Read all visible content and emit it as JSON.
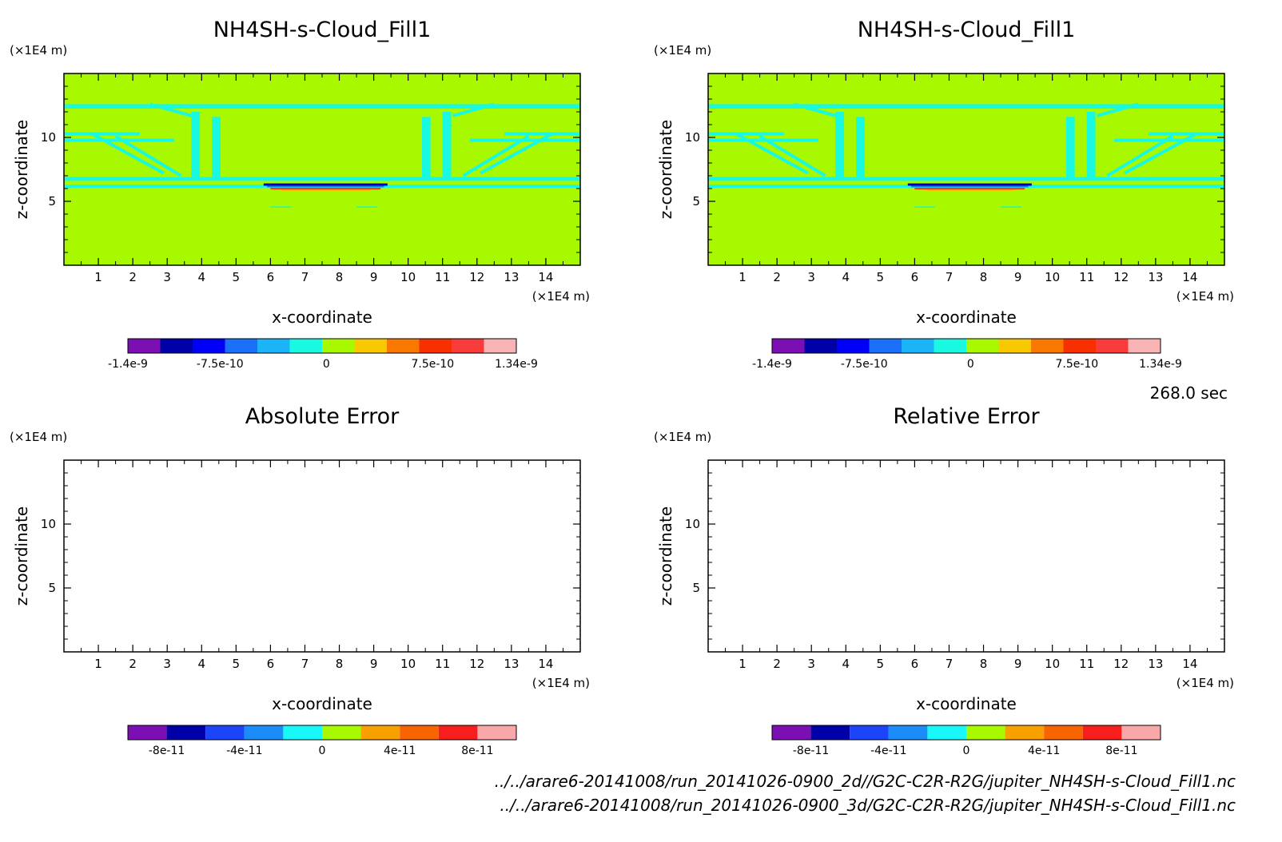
{
  "chart_data": [
    {
      "type": "heatmap",
      "title": "NH4SH-s-Cloud_Fill1",
      "xlabel": "x-coordinate",
      "ylabel": "z-coordinate",
      "x_unit": "(×1E4 m)",
      "y_unit": "(×1E4 m)",
      "xlim": [
        0,
        15
      ],
      "ylim": [
        0,
        15
      ],
      "x_ticks": [
        "1",
        "2",
        "3",
        "4",
        "5",
        "6",
        "7",
        "8",
        "9",
        "10",
        "11",
        "12",
        "13",
        "14"
      ],
      "y_ticks": [
        "5",
        "10"
      ],
      "colorbar": {
        "colors": [
          "#7b0fb4",
          "#0000a8",
          "#0000f8",
          "#1c6ff8",
          "#1cb4f8",
          "#19f8e0",
          "#a8f800",
          "#f8c800",
          "#f87800",
          "#f83000",
          "#f83c3c",
          "#f8b4b4"
        ],
        "tick_labels": [
          "-1.4e-9",
          "-7.5e-10",
          "0",
          "7.5e-10",
          "1.34e-9"
        ],
        "range": [
          -1.4e-09,
          1.34e-09
        ]
      },
      "field_background": "#a8f800"
    },
    {
      "type": "heatmap",
      "title": "NH4SH-s-Cloud_Fill1",
      "xlabel": "x-coordinate",
      "ylabel": "z-coordinate",
      "x_unit": "(×1E4 m)",
      "y_unit": "(×1E4 m)",
      "xlim": [
        0,
        15
      ],
      "ylim": [
        0,
        15
      ],
      "x_ticks": [
        "1",
        "2",
        "3",
        "4",
        "5",
        "6",
        "7",
        "8",
        "9",
        "10",
        "11",
        "12",
        "13",
        "14"
      ],
      "y_ticks": [
        "5",
        "10"
      ],
      "colorbar": {
        "colors": [
          "#7b0fb4",
          "#0000a8",
          "#0000f8",
          "#1c6ff8",
          "#1cb4f8",
          "#19f8e0",
          "#a8f800",
          "#f8c800",
          "#f87800",
          "#f83000",
          "#f83c3c",
          "#f8b4b4"
        ],
        "tick_labels": [
          "-1.4e-9",
          "-7.5e-10",
          "0",
          "7.5e-10",
          "1.34e-9"
        ],
        "range": [
          -1.4e-09,
          1.34e-09
        ]
      },
      "field_background": "#a8f800"
    },
    {
      "type": "heatmap",
      "title": "Absolute Error",
      "xlabel": "x-coordinate",
      "ylabel": "z-coordinate",
      "x_unit": "(×1E4 m)",
      "y_unit": "(×1E4 m)",
      "xlim": [
        0,
        15
      ],
      "ylim": [
        0,
        15
      ],
      "x_ticks": [
        "1",
        "2",
        "3",
        "4",
        "5",
        "6",
        "7",
        "8",
        "9",
        "10",
        "11",
        "12",
        "13",
        "14"
      ],
      "y_ticks": [
        "5",
        "10"
      ],
      "colorbar": {
        "colors": [
          "#7b0fb4",
          "#0000a8",
          "#1c44f8",
          "#1c8cf8",
          "#19f8f8",
          "#a8f800",
          "#f8a000",
          "#f86400",
          "#f81e1e",
          "#f8a8a8"
        ],
        "tick_labels": [
          "-8e-11",
          "-4e-11",
          "0",
          "4e-11",
          "8e-11"
        ],
        "range": [
          -1e-10,
          1e-10
        ]
      },
      "field_background": "#ffffff"
    },
    {
      "type": "heatmap",
      "title": "Relative Error",
      "xlabel": "x-coordinate",
      "ylabel": "z-coordinate",
      "x_unit": "(×1E4 m)",
      "y_unit": "(×1E4 m)",
      "xlim": [
        0,
        15
      ],
      "ylim": [
        0,
        15
      ],
      "x_ticks": [
        "1",
        "2",
        "3",
        "4",
        "5",
        "6",
        "7",
        "8",
        "9",
        "10",
        "11",
        "12",
        "13",
        "14"
      ],
      "y_ticks": [
        "5",
        "10"
      ],
      "colorbar": {
        "colors": [
          "#7b0fb4",
          "#0000a8",
          "#1c44f8",
          "#1c8cf8",
          "#19f8f8",
          "#a8f800",
          "#f8a000",
          "#f86400",
          "#f81e1e",
          "#f8a8a8"
        ],
        "tick_labels": [
          "-8e-11",
          "-4e-11",
          "0",
          "4e-11",
          "8e-11"
        ],
        "range": [
          -1e-10,
          1e-10
        ]
      },
      "field_background": "#ffffff"
    }
  ],
  "time_label": "268.0 sec",
  "file_paths": [
    "../../arare6-20141008/run_20141026-0900_2d//G2C-C2R-R2G/jupiter_NH4SH-s-Cloud_Fill1.nc",
    "../../arare6-20141008/run_20141026-0900_3d/G2C-C2R-R2G/jupiter_NH4SH-s-Cloud_Fill1.nc"
  ]
}
